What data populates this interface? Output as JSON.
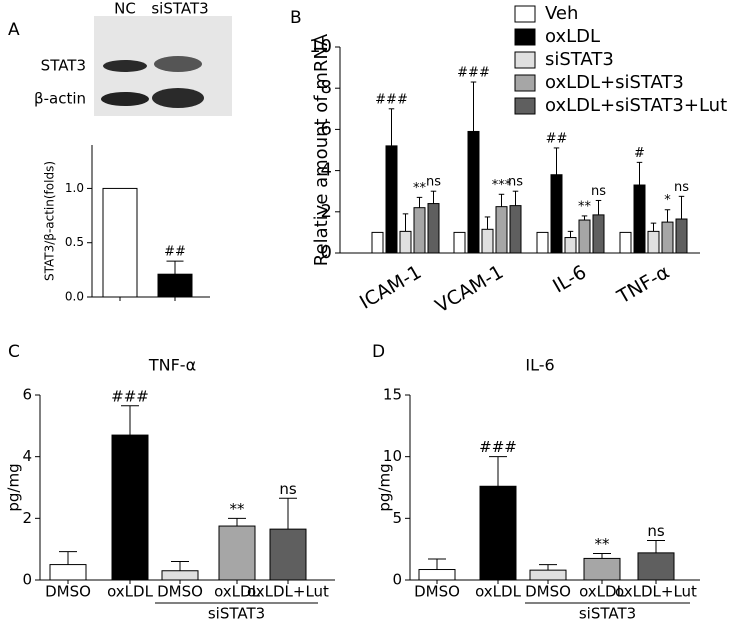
{
  "chart_data": [
    {
      "type": "bar",
      "panel": "A",
      "blot": {
        "lanes": [
          "NC",
          "siSTAT3"
        ],
        "rows": [
          "STAT3",
          "β-actin"
        ]
      },
      "ylabel": "STAT3/β-actin(folds)",
      "categories": [
        null,
        null
      ],
      "values": [
        1.0,
        0.21
      ],
      "errors": [
        null,
        0.12
      ],
      "colors": [
        "#ffffff",
        "#000000"
      ],
      "annotations": [
        null,
        "##"
      ],
      "ylim": [
        0,
        1.4
      ],
      "yticks": [
        {
          "value": 0,
          "label": "0.0"
        },
        {
          "value": 0.5,
          "label": "0.5"
        },
        {
          "value": 1,
          "label": "1.0"
        }
      ]
    },
    {
      "type": "bar",
      "panel": "B",
      "ylabel": "Relative amount  of mRNA",
      "categories": [
        "ICAM-1",
        "VCAM-1",
        "IL-6",
        "TNF-α"
      ],
      "series": [
        {
          "name": "Veh",
          "color": "#ffffff",
          "values": [
            1,
            1,
            1,
            1
          ]
        },
        {
          "name": "oxLDL",
          "color": "#000000",
          "values": [
            5.2,
            5.9,
            3.8,
            3.3
          ],
          "errors": [
            1.8,
            2.4,
            1.3,
            1.1
          ],
          "annotations": [
            "###",
            "###",
            "##",
            "#"
          ]
        },
        {
          "name": "siSTAT3",
          "color": "#e0e0e0",
          "values": [
            1.05,
            1.15,
            0.75,
            1.05
          ],
          "errors": [
            0.85,
            0.6,
            0.3,
            0.4
          ]
        },
        {
          "name": "oxLDL+siSTAT3",
          "color": "#a6a6a6",
          "values": [
            2.2,
            2.25,
            1.6,
            1.5
          ],
          "errors": [
            0.5,
            0.6,
            0.2,
            0.6
          ],
          "annotations": [
            "**",
            "***",
            "**",
            "*"
          ]
        },
        {
          "name": "oxLDL+siSTAT3+Lut",
          "color": "#5f5f5f",
          "values": [
            2.4,
            2.3,
            1.85,
            1.65
          ],
          "errors": [
            0.6,
            0.7,
            0.7,
            1.1
          ],
          "annotations": [
            "ns",
            "ns",
            "ns",
            "ns"
          ]
        }
      ],
      "ylim": [
        0,
        10
      ],
      "yticks": [
        0,
        2,
        4,
        6,
        8,
        10
      ]
    },
    {
      "type": "bar",
      "panel": "C",
      "title": "TNF-α",
      "ylabel": "pg/mg",
      "categories": [
        "DMSO",
        "oxLDL",
        "DMSO",
        "oxLDL",
        "oxLDL+Lut"
      ],
      "group_label": "siSTAT3",
      "values": [
        0.5,
        4.7,
        0.3,
        1.75,
        1.65
      ],
      "errors": [
        0.42,
        0.95,
        0.3,
        0.25,
        1.0
      ],
      "colors": [
        "#ffffff",
        "#000000",
        "#e0e0e0",
        "#a6a6a6",
        "#5f5f5f"
      ],
      "annotations": [
        null,
        "###",
        null,
        "**",
        "ns"
      ],
      "ylim": [
        0,
        6
      ],
      "yticks": [
        0,
        2,
        4,
        6
      ]
    },
    {
      "type": "bar",
      "panel": "D",
      "title": "IL-6",
      "ylabel": "pg/mg",
      "categories": [
        "DMSO",
        "oxLDL",
        "DMSO",
        "oxLDL",
        "oxLDL+Lut"
      ],
      "group_label": "siSTAT3",
      "values": [
        0.85,
        7.6,
        0.8,
        1.75,
        2.2
      ],
      "errors": [
        0.85,
        2.4,
        0.45,
        0.4,
        1.0
      ],
      "colors": [
        "#ffffff",
        "#000000",
        "#e0e0e0",
        "#a6a6a6",
        "#5f5f5f"
      ],
      "annotations": [
        null,
        "###",
        null,
        "**",
        "ns"
      ],
      "ylim": [
        0,
        15
      ],
      "yticks": [
        0,
        5,
        10,
        15
      ]
    }
  ]
}
